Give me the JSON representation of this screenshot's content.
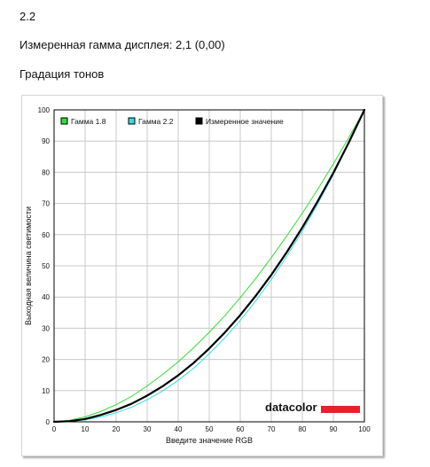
{
  "header": {
    "value": "2.2",
    "measured_gamma": "Измеренная гамма дисплея: 2,1 (0,00)",
    "section_title": "Градация тонов"
  },
  "brand": {
    "logo_text": "datacolor",
    "accent": "#e8202a"
  },
  "chart_data": {
    "type": "line",
    "title": "",
    "xlabel": "Введите значение RGB",
    "ylabel": "Выходная величина светимости",
    "xlim": [
      0,
      100
    ],
    "ylim": [
      0,
      100
    ],
    "x_ticks": [
      0,
      10,
      20,
      30,
      40,
      50,
      60,
      70,
      80,
      90,
      100
    ],
    "y_ticks": [
      0,
      10,
      20,
      30,
      40,
      50,
      60,
      70,
      80,
      90,
      100
    ],
    "grid": true,
    "legend_position": "top-left",
    "x": [
      0,
      5,
      10,
      15,
      20,
      25,
      30,
      35,
      40,
      45,
      50,
      55,
      60,
      65,
      70,
      75,
      80,
      85,
      90,
      95,
      100
    ],
    "series": [
      {
        "name": "Гамма 1.8",
        "color": "#33dd33",
        "width": 1,
        "values": [
          0,
          0.5,
          1.6,
          3.3,
          5.5,
          8.2,
          11.5,
          15.2,
          19.2,
          23.8,
          28.7,
          34.0,
          39.8,
          46.0,
          52.6,
          59.6,
          66.9,
          74.6,
          82.7,
          91.2,
          100
        ]
      },
      {
        "name": "Гамма 2.2",
        "color": "#33dddd",
        "width": 1,
        "values": [
          0,
          0.1,
          0.6,
          1.6,
          2.9,
          4.7,
          7.1,
          9.9,
          13.3,
          17.2,
          21.8,
          26.9,
          32.5,
          38.8,
          45.6,
          53.1,
          61.2,
          69.9,
          79.3,
          89.3,
          100
        ]
      },
      {
        "name": "Измеренное значение",
        "color": "#000000",
        "width": 2.2,
        "values": [
          0,
          0.2,
          0.9,
          2.2,
          3.8,
          5.8,
          8.4,
          11.4,
          14.9,
          18.9,
          23.5,
          28.6,
          34.2,
          40.4,
          47.1,
          54.4,
          62.3,
          70.8,
          79.8,
          89.6,
          100
        ]
      }
    ]
  }
}
